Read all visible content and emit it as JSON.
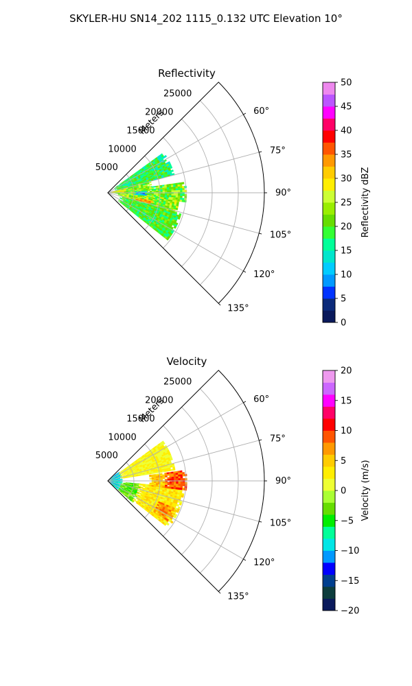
{
  "figure": {
    "suptitle": "SKYLER-HU  SN14_202  1115_0.132 UTC Elevation 10°"
  },
  "chart_data": [
    {
      "type": "heatmap",
      "subtype": "polar-sector",
      "title": "Reflectivity",
      "range_axis_label": "Meters",
      "range_ticks": [
        5000,
        10000,
        15000,
        20000,
        25000
      ],
      "range_tick_labels": [
        "5000",
        "10000",
        "15000",
        "20000",
        "25000"
      ],
      "rmax": 30000,
      "theta_range_deg": [
        45,
        135
      ],
      "theta_ticks": [
        60,
        75,
        90,
        105,
        120,
        135
      ],
      "theta_tick_labels": [
        "60°",
        "75°",
        "90°",
        "105°",
        "120°",
        "135°"
      ],
      "grid": true,
      "colorbar": {
        "label": "Reflectivity dBZ",
        "min": 0,
        "max": 50,
        "ticks": [
          0,
          5,
          10,
          15,
          20,
          25,
          30,
          35,
          40,
          45,
          50
        ],
        "tick_labels": [
          "0",
          "5",
          "10",
          "15",
          "20",
          "25",
          "30",
          "35",
          "40",
          "45",
          "50"
        ],
        "colormap": "NWSRef"
      },
      "echo_regions": [
        {
          "az": [
            54,
            74
          ],
          "r": [
            1500,
            13000
          ],
          "value": 18,
          "spread": 5
        },
        {
          "az": [
            74,
            94
          ],
          "r": [
            1000,
            8500
          ],
          "value": 22,
          "spread": 5
        },
        {
          "az": [
            82,
            96
          ],
          "r": [
            8000,
            14800
          ],
          "value": 22,
          "spread": 6
        },
        {
          "az": [
            95,
            107
          ],
          "r": [
            2000,
            13500
          ],
          "value": 23,
          "spread": 6
        },
        {
          "az": [
            100,
            104
          ],
          "r": [
            5500,
            9000
          ],
          "value": 33,
          "spread": 3
        },
        {
          "az": [
            106,
            128
          ],
          "r": [
            2500,
            14500
          ],
          "value": 19,
          "spread": 4
        },
        {
          "az": [
            78,
            88
          ],
          "r": [
            600,
            3500
          ],
          "value": 28,
          "spread": 4
        },
        {
          "az": [
            88,
            94
          ],
          "r": [
            5000,
            7500
          ],
          "value": 10,
          "spread": 3
        }
      ]
    },
    {
      "type": "heatmap",
      "subtype": "polar-sector",
      "title": "Velocity",
      "range_axis_label": "Meters",
      "range_ticks": [
        5000,
        10000,
        15000,
        20000,
        25000
      ],
      "range_tick_labels": [
        "5000",
        "10000",
        "15000",
        "20000",
        "25000"
      ],
      "rmax": 30000,
      "theta_range_deg": [
        45,
        135
      ],
      "theta_ticks": [
        60,
        75,
        90,
        105,
        120,
        135
      ],
      "theta_tick_labels": [
        "60°",
        "75°",
        "90°",
        "105°",
        "120°",
        "135°"
      ],
      "grid": true,
      "colorbar": {
        "label": "Velocity (m/s)",
        "min": -20,
        "max": 20,
        "ticks": [
          -20,
          -15,
          -10,
          -5,
          0,
          5,
          10,
          15,
          20
        ],
        "tick_labels": [
          "−20",
          "−15",
          "−10",
          "−5",
          "0",
          "5",
          "10",
          "15",
          "20"
        ],
        "colormap": "NWSVel"
      },
      "echo_regions": [
        {
          "az": [
            50,
            130
          ],
          "r": [
            300,
            2600
          ],
          "value": -9,
          "spread": 2
        },
        {
          "az": [
            95,
            130
          ],
          "r": [
            2600,
            6000
          ],
          "value": -3,
          "spread": 2
        },
        {
          "az": [
            54,
            80
          ],
          "r": [
            2600,
            13000
          ],
          "value": 2,
          "spread": 2
        },
        {
          "az": [
            95,
            128
          ],
          "r": [
            6000,
            14500
          ],
          "value": 3,
          "spread": 2
        },
        {
          "az": [
            82,
            96
          ],
          "r": [
            8000,
            11000
          ],
          "value": 5,
          "spread": 2
        },
        {
          "az": [
            82,
            96
          ],
          "r": [
            11000,
            14800
          ],
          "value": 9,
          "spread": 2
        },
        {
          "az": [
            112,
            124
          ],
          "r": [
            10500,
            14000
          ],
          "value": 7,
          "spread": 2
        }
      ]
    }
  ],
  "colors": {
    "grid": "#b0b0b0",
    "axes": "#000000"
  }
}
